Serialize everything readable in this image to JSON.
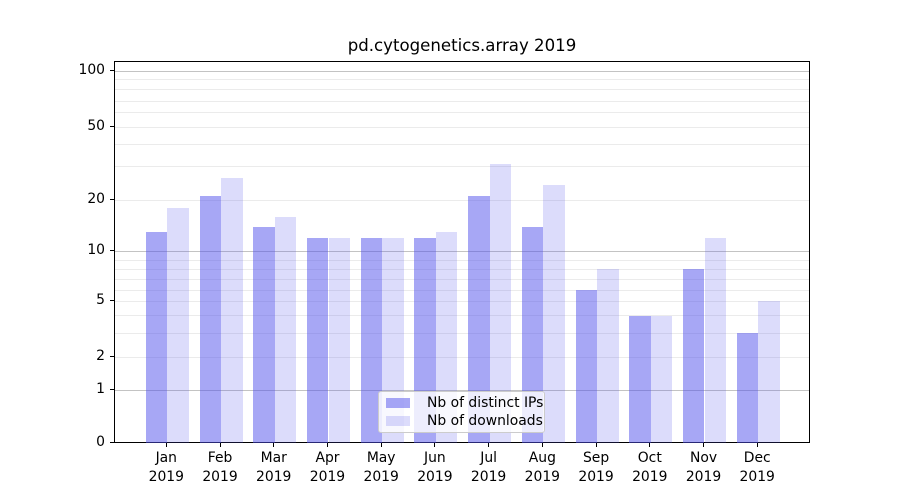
{
  "title": "pd.cytogenetics.array 2019",
  "chart_data": {
    "type": "bar",
    "title": "pd.cytogenetics.array 2019",
    "categories": [
      "Jan 2019",
      "Feb 2019",
      "Mar 2019",
      "Apr 2019",
      "May 2019",
      "Jun 2019",
      "Jul 2019",
      "Aug 2019",
      "Sep 2019",
      "Oct 2019",
      "Nov 2019",
      "Dec 2019"
    ],
    "x_tick_month": [
      "Jan",
      "Feb",
      "Mar",
      "Apr",
      "May",
      "Jun",
      "Jul",
      "Aug",
      "Sep",
      "Oct",
      "Nov",
      "Dec"
    ],
    "x_tick_year": "2019",
    "series": [
      {
        "name": "Nb of distinct IPs",
        "values": [
          13,
          21,
          14,
          12,
          12,
          12,
          21,
          14,
          6,
          4,
          8,
          3
        ],
        "color": "rgba(80,80,235,0.5)",
        "color_on_white": "#a8a8f5"
      },
      {
        "name": "Nb of downloads",
        "values": [
          18,
          26,
          16,
          12,
          12,
          13,
          31,
          24,
          8,
          4,
          12,
          5
        ],
        "color": "rgba(80,80,235,0.2)",
        "color_on_white": "#dcdcfb"
      }
    ],
    "y_axis": {
      "scale": "log-like (linear segment 0-1)",
      "tick_values": [
        0,
        1,
        2,
        5,
        10,
        20,
        50,
        100
      ],
      "gridline_values": [
        1,
        2,
        3,
        4,
        5,
        6,
        7,
        8,
        9,
        10,
        20,
        30,
        40,
        50,
        60,
        70,
        80,
        90,
        100
      ],
      "major_gridline_values": [
        1,
        10,
        100
      ],
      "range": [
        0,
        113
      ]
    },
    "grid": "horizontal",
    "legend": {
      "position": "lower center inside plot",
      "entries": [
        "Nb of distinct IPs",
        "Nb of downloads"
      ]
    }
  },
  "colors": {
    "background": "#ffffff",
    "spine": "#000000",
    "grid_minor": "#ebebeb",
    "grid_major": "#c3c3c3",
    "text": "#000000",
    "legend_border": "#cccccc",
    "legend_background": "rgba(255,255,255,0.8)"
  }
}
